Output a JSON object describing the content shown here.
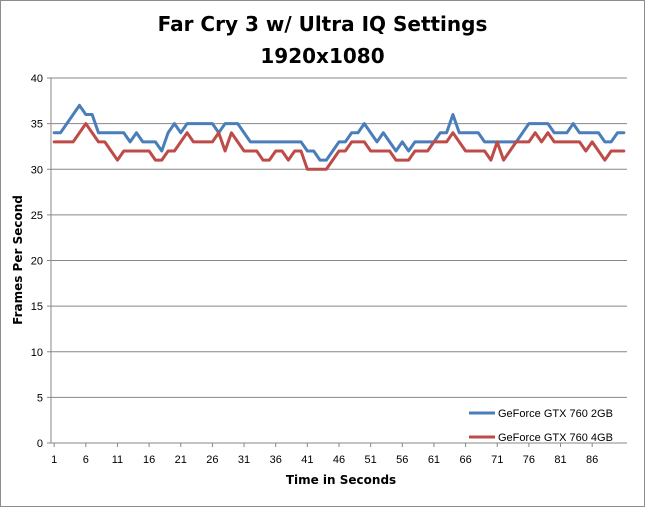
{
  "chart_data": {
    "type": "line",
    "title": "Far Cry 3 w/ Ultra IQ Settings",
    "subtitle": "1920x1080",
    "xlabel": "Time in Seconds",
    "ylabel": "Frames Per Second",
    "ylim": [
      0,
      40
    ],
    "yticks": [
      0,
      5,
      10,
      15,
      20,
      25,
      30,
      35,
      40
    ],
    "xticks": [
      1,
      6,
      11,
      16,
      21,
      26,
      31,
      36,
      41,
      46,
      51,
      56,
      61,
      66,
      71,
      76,
      81,
      86
    ],
    "grid": true,
    "legend_position": "bottom-right",
    "colors": {
      "series_2gb": "#4a7ebb",
      "series_4gb": "#be4b48",
      "grid": "#878787"
    },
    "x_start": 1,
    "series": [
      {
        "name": "GeForce GTX 760 2GB",
        "values": [
          34,
          34,
          35,
          36,
          37,
          36,
          36,
          34,
          34,
          34,
          34,
          34,
          33,
          34,
          33,
          33,
          33,
          32,
          34,
          35,
          34,
          35,
          35,
          35,
          35,
          35,
          34,
          35,
          35,
          35,
          34,
          33,
          33,
          33,
          33,
          33,
          33,
          33,
          33,
          33,
          32,
          32,
          31,
          31,
          32,
          33,
          33,
          34,
          34,
          35,
          34,
          33,
          34,
          33,
          32,
          33,
          32,
          33,
          33,
          33,
          33,
          34,
          34,
          36,
          34,
          34,
          34,
          34,
          33,
          33,
          33,
          33,
          33,
          33,
          34,
          35,
          35,
          35,
          35,
          34,
          34,
          34,
          35,
          34,
          34,
          34,
          34,
          33,
          33,
          34,
          34
        ]
      },
      {
        "name": "GeForce GTX 760 4GB",
        "values": [
          33,
          33,
          33,
          33,
          34,
          35,
          34,
          33,
          33,
          32,
          31,
          32,
          32,
          32,
          32,
          32,
          31,
          31,
          32,
          32,
          33,
          34,
          33,
          33,
          33,
          33,
          34,
          32,
          34,
          33,
          32,
          32,
          32,
          31,
          31,
          32,
          32,
          31,
          32,
          32,
          30,
          30,
          30,
          30,
          31,
          32,
          32,
          33,
          33,
          33,
          32,
          32,
          32,
          32,
          31,
          31,
          31,
          32,
          32,
          32,
          33,
          33,
          33,
          34,
          33,
          32,
          32,
          32,
          32,
          31,
          33,
          31,
          32,
          33,
          33,
          33,
          34,
          33,
          34,
          33,
          33,
          33,
          33,
          33,
          32,
          33,
          32,
          31,
          32,
          32,
          32
        ]
      }
    ]
  }
}
